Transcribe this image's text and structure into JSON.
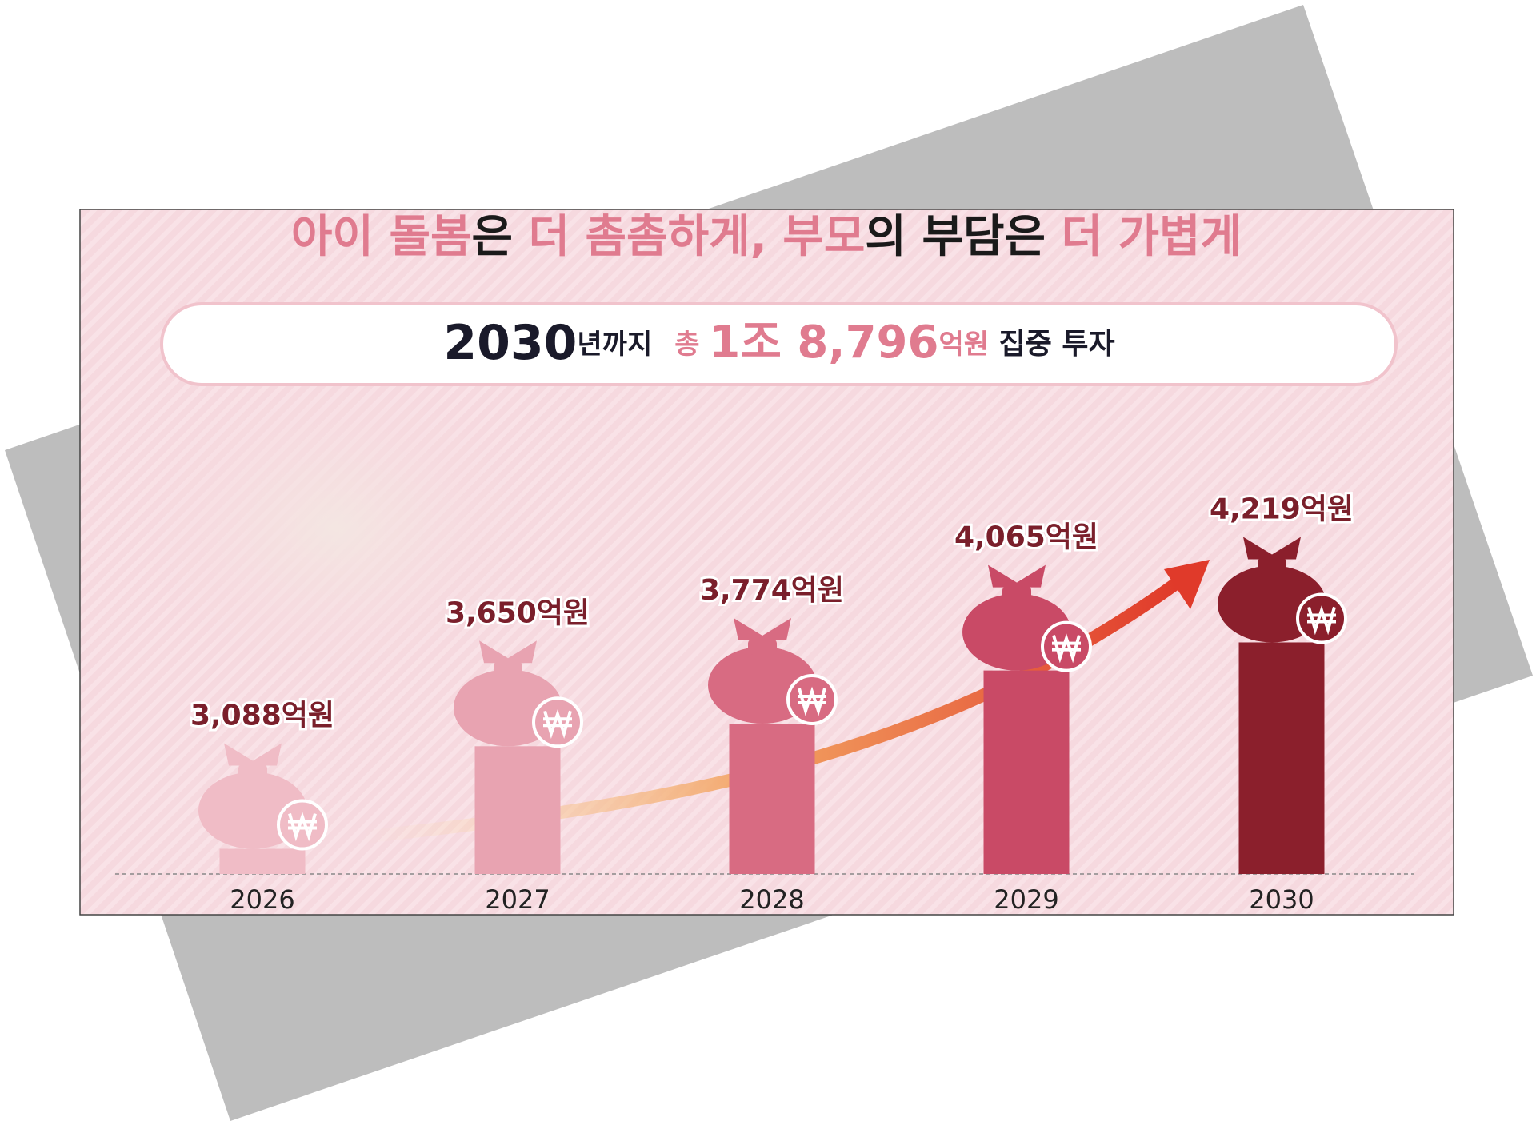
{
  "chart_data": {
    "type": "bar",
    "title_parts": [
      {
        "text": "아이 돌봄",
        "color": "#e07b8f"
      },
      {
        "text": "은 ",
        "color": "#1a1a1a"
      },
      {
        "text": "더 촘촘하게, 부모",
        "color": "#e07b8f"
      },
      {
        "text": "의 부담은 ",
        "color": "#1a1a1a"
      },
      {
        "text": "더 가볍게",
        "color": "#e07b8f"
      }
    ],
    "subtitle_parts": [
      {
        "text": "2030",
        "color": "#1a1a2a"
      },
      {
        "text": "년까지",
        "color": "#1a1a2a"
      },
      {
        "text": "총 ",
        "color": "#e07b8f"
      },
      {
        "text": "1조 8,796",
        "color": "#e07b8f"
      },
      {
        "text": "억원",
        "color": "#e07b8f"
      },
      {
        "text": " 집중 투자",
        "color": "#1a1a2a"
      }
    ],
    "categories": [
      "2026",
      "2027",
      "2028",
      "2029",
      "2030"
    ],
    "values": [
      3088,
      3650,
      3774,
      4065,
      4219
    ],
    "value_labels": [
      "3,088억원",
      "3,650억원",
      "3,774억원",
      "4,065억원",
      "4,219억원"
    ],
    "colors": [
      "#f0bcc6",
      "#e8a3b1",
      "#d86b82",
      "#c94a66",
      "#8b1f2c"
    ],
    "ylim": [
      2950,
      4300
    ]
  }
}
